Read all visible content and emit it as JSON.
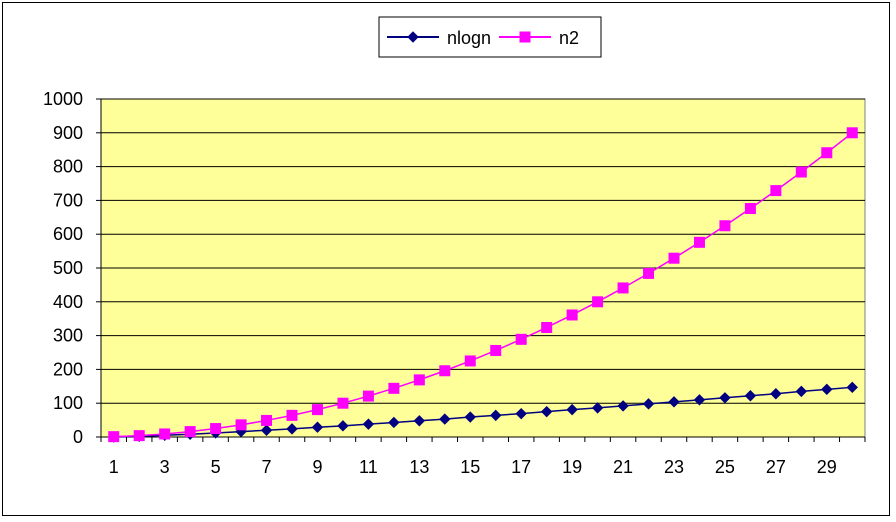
{
  "chart_data": {
    "type": "line",
    "title": "",
    "xlabel": "",
    "ylabel": "",
    "x": [
      1,
      2,
      3,
      4,
      5,
      6,
      7,
      8,
      9,
      10,
      11,
      12,
      13,
      14,
      15,
      16,
      17,
      18,
      19,
      20,
      21,
      22,
      23,
      24,
      25,
      26,
      27,
      28,
      29,
      30
    ],
    "x_tick_labels": [
      "1",
      "3",
      "5",
      "7",
      "9",
      "11",
      "13",
      "15",
      "17",
      "19",
      "21",
      "23",
      "25",
      "27",
      "29"
    ],
    "ylim": [
      0,
      1000
    ],
    "y_ticks": [
      0,
      100,
      200,
      300,
      400,
      500,
      600,
      700,
      800,
      900,
      1000
    ],
    "y_tick_labels": [
      "0",
      "100",
      "200",
      "300",
      "400",
      "500",
      "600",
      "700",
      "800",
      "900",
      "1000"
    ],
    "grid": "horizontal",
    "plot_background": "#FFFF99",
    "legend_position": "top-center",
    "series": [
      {
        "name": "nlogn",
        "color": "#000080",
        "marker": "diamond",
        "values": [
          0,
          2,
          5,
          8,
          12,
          16,
          20,
          24,
          29,
          33,
          38,
          43,
          48,
          53,
          59,
          64,
          69,
          75,
          81,
          86,
          92,
          98,
          104,
          110,
          116,
          122,
          128,
          135,
          141,
          147
        ]
      },
      {
        "name": "n2",
        "color": "#FF00FF",
        "marker": "square",
        "values": [
          1,
          4,
          9,
          16,
          25,
          36,
          49,
          64,
          81,
          100,
          121,
          144,
          169,
          196,
          225,
          256,
          289,
          324,
          361,
          400,
          441,
          484,
          529,
          576,
          625,
          676,
          729,
          784,
          841,
          900
        ]
      }
    ]
  }
}
